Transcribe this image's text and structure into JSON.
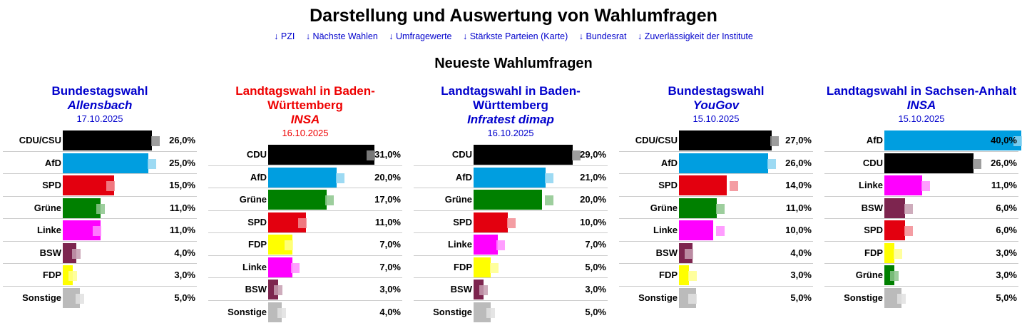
{
  "header": {
    "title": "Darstellung und Auswertung von Wahlumfragen",
    "subtitle": "Neueste Wahlumfragen"
  },
  "nav_links": [
    "↓ PZI",
    "↓ Nächste Wahlen",
    "↓ Umfragewerte",
    "↓ Stärkste Parteien (Karte)",
    "↓ Bundesrat",
    "↓ Zuverlässigkeit der Institute"
  ],
  "colors": {
    "CDU/CSU": "#000000",
    "CDU": "#000000",
    "AfD": "#009ee0",
    "SPD": "#e3000f",
    "Grüne": "#008000",
    "Linke": "#ff00ff",
    "BSW": "#7d254f",
    "FDP": "#ffff00",
    "Sonstige": "#bbbbbb",
    "heading_blue": "#0000cc",
    "heading_red": "#ee0000"
  },
  "chart_data": [
    {
      "type": "bar",
      "election": "Bundestagswahl",
      "institute": "Allensbach",
      "date": "17.10.2025",
      "heading_color": "blue",
      "categories": [
        "CDU/CSU",
        "AfD",
        "SPD",
        "Grüne",
        "Linke",
        "BSW",
        "FDP",
        "Sonstige"
      ],
      "values": [
        26,
        25,
        15,
        11,
        11,
        4,
        3,
        5
      ],
      "labels": [
        "26,0%",
        "25,0%",
        "15,0%",
        "11,0%",
        "11,0%",
        "4,0%",
        "3,0%",
        "5,0%"
      ],
      "previous": [
        27,
        26,
        14,
        11,
        10,
        4,
        3,
        5
      ]
    },
    {
      "type": "bar",
      "election": "Landtagswahl in Baden-Württemberg",
      "institute": "INSA",
      "date": "16.10.2025",
      "heading_color": "red",
      "categories": [
        "CDU",
        "AfD",
        "Grüne",
        "SPD",
        "FDP",
        "Linke",
        "BSW",
        "Sonstige"
      ],
      "values": [
        31,
        20,
        17,
        11,
        7,
        7,
        3,
        4
      ],
      "labels": [
        "31,0%",
        "20,0%",
        "17,0%",
        "11,0%",
        "7,0%",
        "7,0%",
        "3,0%",
        "4,0%"
      ],
      "previous": [
        30,
        21,
        18,
        10,
        6,
        8,
        3,
        4
      ]
    },
    {
      "type": "bar",
      "election": "Landtagswahl in Baden-Württemberg",
      "institute": "Infratest dimap",
      "date": "16.10.2025",
      "heading_color": "blue",
      "categories": [
        "CDU",
        "AfD",
        "Grüne",
        "SPD",
        "Linke",
        "FDP",
        "BSW",
        "Sonstige"
      ],
      "values": [
        29,
        21,
        20,
        10,
        7,
        5,
        3,
        5
      ],
      "labels": [
        "29,0%",
        "21,0%",
        "20,0%",
        "10,0%",
        "7,0%",
        "5,0%",
        "3,0%",
        "5,0%"
      ],
      "previous": [
        30,
        22,
        22,
        11,
        8,
        6,
        3,
        5
      ]
    },
    {
      "type": "bar",
      "election": "Bundestagswahl",
      "institute": "YouGov",
      "date": "15.10.2025",
      "heading_color": "blue",
      "categories": [
        "CDU/CSU",
        "AfD",
        "SPD",
        "Grüne",
        "Linke",
        "BSW",
        "FDP",
        "Sonstige"
      ],
      "values": [
        27,
        26,
        14,
        11,
        10,
        4,
        3,
        5
      ],
      "labels": [
        "27,0%",
        "26,0%",
        "14,0%",
        "11,0%",
        "10,0%",
        "4,0%",
        "3,0%",
        "5,0%"
      ],
      "previous": [
        28,
        27,
        16,
        12,
        12,
        3,
        4,
        4
      ]
    },
    {
      "type": "bar",
      "election": "Landtagswahl in Sachsen-Anhalt",
      "institute": "INSA",
      "date": "15.10.2025",
      "heading_color": "blue",
      "categories": [
        "AfD",
        "CDU",
        "Linke",
        "BSW",
        "SPD",
        "FDP",
        "Grüne",
        "Sonstige"
      ],
      "values": [
        40,
        26,
        11,
        6,
        6,
        3,
        3,
        5
      ],
      "labels": [
        "40,0%",
        "26,0%",
        "11,0%",
        "6,0%",
        "6,0%",
        "3,0%",
        "3,0%",
        "5,0%"
      ],
      "previous": [
        39,
        27,
        12,
        7,
        7,
        4,
        3,
        5
      ]
    }
  ]
}
